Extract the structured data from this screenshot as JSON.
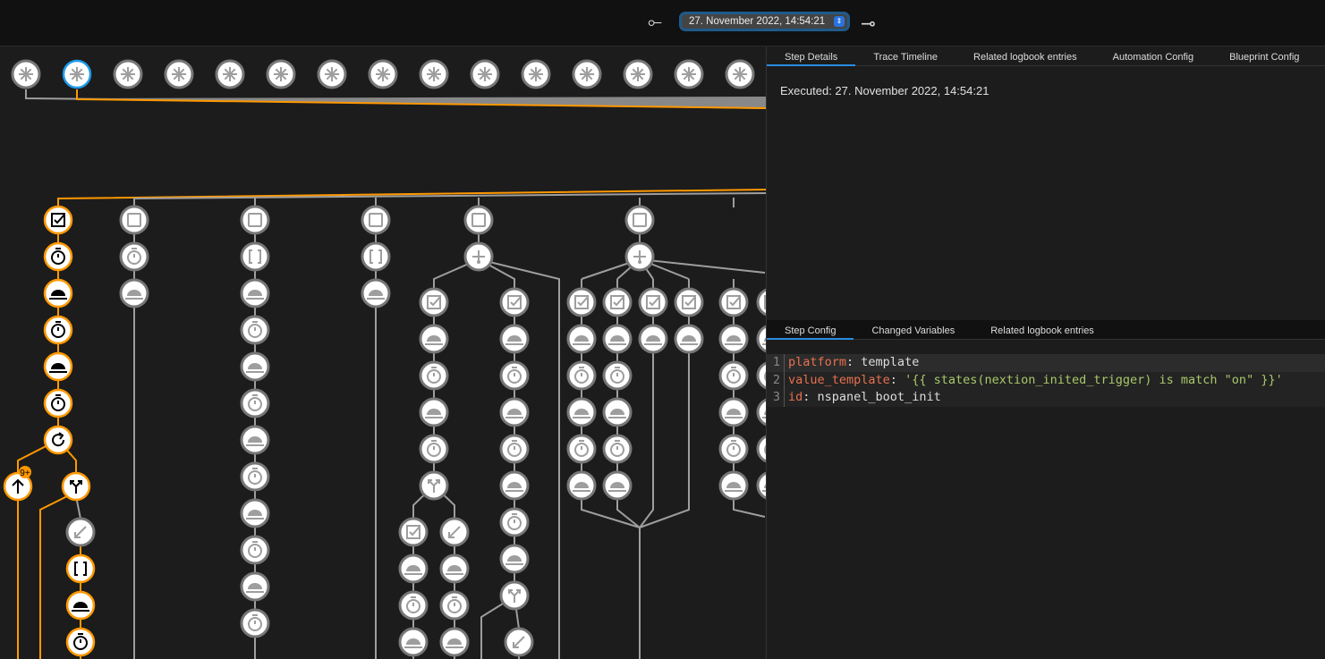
{
  "header": {
    "prev_icon": "arrow-left-dot-icon",
    "next_icon": "arrow-right-dot-icon",
    "selected_run": "27. November 2022, 14:54:21"
  },
  "colors": {
    "active": "#ff9800",
    "inactive": "#9e9e9e",
    "selected": "#1e9be9",
    "tab_underline": "#2a8ce0"
  },
  "details_tabs": [
    "Step Details",
    "Trace Timeline",
    "Related logbook entries",
    "Automation Config",
    "Blueprint Config"
  ],
  "executed": "Executed: 27. November 2022, 14:54:21",
  "config_tabs": [
    "Step Config",
    "Changed Variables",
    "Related logbook entries"
  ],
  "code": [
    {
      "n": "1",
      "key": "platform",
      "value": "template",
      "type": "plain"
    },
    {
      "n": "2",
      "key": "value_template",
      "value": "'{{ states(nextion_inited_trigger) is match \"on\" }}'",
      "type": "string"
    },
    {
      "n": "3",
      "key": "id",
      "value": "nspanel_boot_init",
      "type": "plain"
    }
  ],
  "graph": {
    "trigger_count": 15,
    "selected_trigger": 1,
    "loop_badge": "9+"
  }
}
